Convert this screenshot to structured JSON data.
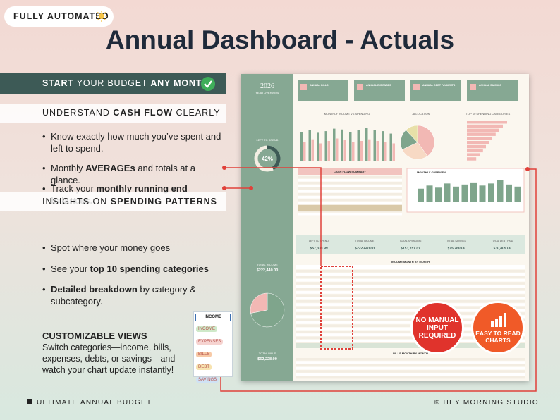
{
  "badge": {
    "text": "FULLY AUTOMATED"
  },
  "title": "Annual Dashboard - Actuals",
  "banner": [
    "START",
    " YOUR BUDGET ",
    "ANY MONTH"
  ],
  "sections": [
    {
      "heading": [
        "UNDERSTAND ",
        "CASH FLOW",
        " CLEARLY"
      ],
      "bullets": [
        [
          "Know exactly how much you’ve spent and left to spend."
        ],
        [
          "Monthly ",
          "AVERAGEs",
          " and totals at a glance."
        ],
        [
          "Track your ",
          "monthly running end balances."
        ]
      ]
    },
    {
      "heading": [
        "INSIGHTS ON ",
        "SPENDING PATTERNS"
      ],
      "bullets": [
        [
          "Spot where your money goes"
        ],
        [
          "See your ",
          "top 10 spending categories"
        ],
        [
          "Detailed breakdown",
          " by category & subcategory."
        ]
      ]
    }
  ],
  "custom": {
    "heading": "CUSTOMIZABLE VIEWS",
    "text": "Switch categories—income, bills, expenses, debts, or savings—and watch your chart update instantly!"
  },
  "dropdown": {
    "selected": "INCOME",
    "options": [
      {
        "label": "INCOME",
        "color": "#cfe9c9"
      },
      {
        "label": "EXPENSES",
        "color": "#f6d3d0"
      },
      {
        "label": "BILLS",
        "color": "#f7c9a6"
      },
      {
        "label": "DEBT",
        "color": "#f7e3b0"
      },
      {
        "label": "SAVINGS",
        "color": "#cfe2f5"
      }
    ]
  },
  "badges": [
    {
      "text": "NO MANUAL INPUT REQUIRED",
      "color": "#e0332c"
    },
    {
      "text": "EASY TO READ CHARTS",
      "color": "#f05a28"
    }
  ],
  "footer": {
    "left": "ULTIMATE ANNUAL BUDGET",
    "right": "© HEY MORNING STUDIO"
  },
  "dashboard": {
    "year": "2026",
    "subtitle": "YEAR OVERVIEW",
    "cards": [
      "ANNUAL BILLS",
      "ANNUAL EXPENSES",
      "ANNUAL DEBT PAYMENTS",
      "ANNUAL SAVINGS"
    ],
    "left_to_spend": {
      "label": "LEFT TO SPEND",
      "value": 42,
      "value_label": "42%"
    },
    "income_vs_spending": {
      "type": "bar",
      "title": "MONTHLY INCOME VS SPENDING",
      "ylim": [
        0,
        25000
      ],
      "series": [
        {
          "color": "#7fa58c",
          "values": [
            18000,
            19000,
            17500,
            18500,
            20000,
            19500,
            18000,
            19000,
            20500,
            19000,
            18500,
            17000
          ]
        },
        {
          "color": "#f2b8b4",
          "values": [
            12000,
            13500,
            11000,
            12500,
            14000,
            13000,
            12000,
            12500,
            13500,
            12500,
            12000,
            11000
          ]
        }
      ]
    },
    "allocation": {
      "type": "pie",
      "title": "ALLOCATION",
      "values": [
        40,
        28,
        20,
        12
      ],
      "colors": [
        "#f2b8b4",
        "#f7d9c4",
        "#7fa58c",
        "#e8e0a8"
      ]
    },
    "top10": {
      "type": "bar",
      "title": "TOP 10 SPENDING CATEGORIES",
      "color": "#f2b8b4",
      "xlim": [
        0,
        100
      ],
      "values": [
        95,
        85,
        75,
        68,
        60,
        52,
        45,
        38,
        30,
        22
      ]
    },
    "cash_flow_title": "CASH FLOW SUMMARY",
    "monthly_overview": {
      "type": "bar",
      "title": "MONTHLY OVERVIEW",
      "color": "#7fa58c",
      "ylim": [
        0,
        25000
      ],
      "values": [
        13000,
        16000,
        14000,
        18000,
        15000,
        17000,
        19000,
        16000,
        18000,
        21000,
        17000,
        15000
      ]
    },
    "totals": [
      {
        "label": "LEFT TO SPEND",
        "value": "$57,304.99"
      },
      {
        "label": "TOTAL INCOME",
        "value": "$222,440.00"
      },
      {
        "label": "TOTAL SPENDING",
        "value": "$153,151.01"
      },
      {
        "label": "TOTAL SAVINGS",
        "value": "$15,760.00"
      },
      {
        "label": "TOTAL DEBT PAID",
        "value": "$30,805.00"
      }
    ],
    "sidebar_totals": [
      {
        "label": "TOTAL INCOME",
        "value": "$222,440.00"
      },
      {
        "label": "TOTAL BILLS",
        "value": "$62,228.00"
      }
    ],
    "income_pie": {
      "type": "pie",
      "values": [
        72,
        28
      ],
      "colors": [
        "#7fa58c",
        "#f2b8b4"
      ]
    },
    "income_table_title": "INCOME MONTH BY MONTH",
    "bills_table_title": "BILLS MONTH BY MONTH"
  }
}
